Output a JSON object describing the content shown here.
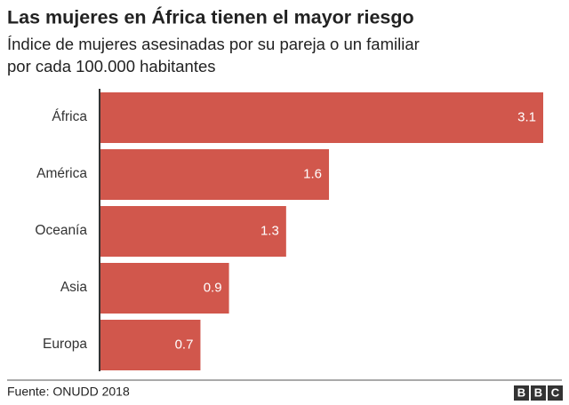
{
  "chart_data": {
    "type": "hbar",
    "title": "Las mujeres en África tienen el mayor riesgo",
    "subtitle": [
      "Índice de mujeres asesinadas por su pareja o un familiar",
      "por cada 100.000 habitantes"
    ],
    "categories": [
      "África",
      "América",
      "Oceanía",
      "Asia",
      "Europa"
    ],
    "values": [
      3.1,
      1.6,
      1.3,
      0.9,
      0.7
    ],
    "color": "#d1574c",
    "source": "Fuente: ONUDD 2018",
    "logo": [
      "B",
      "B",
      "C"
    ]
  }
}
